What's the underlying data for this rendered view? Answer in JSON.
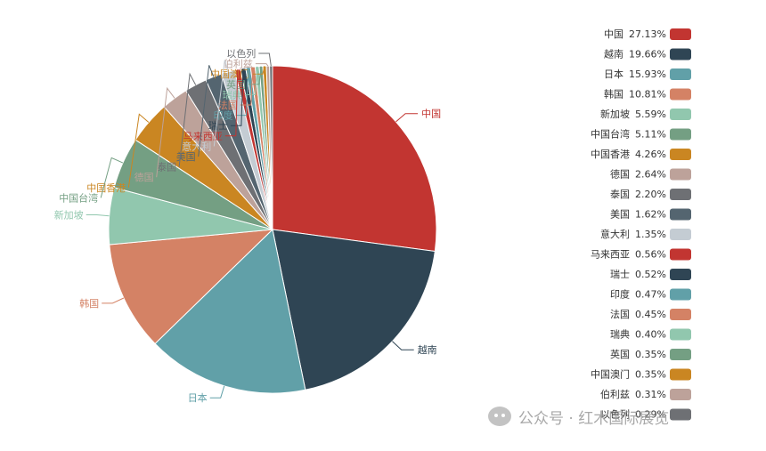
{
  "chart_data": {
    "type": "pie",
    "title": "",
    "legend_position": "right",
    "slices": [
      {
        "name": "中国",
        "value": 27.13,
        "value_label": "27.13%",
        "color": "#c23531"
      },
      {
        "name": "越南",
        "value": 19.66,
        "value_label": "19.66%",
        "color": "#2f4554"
      },
      {
        "name": "日本",
        "value": 15.93,
        "value_label": "15.93%",
        "color": "#61a0a8"
      },
      {
        "name": "韩国",
        "value": 10.81,
        "value_label": "10.81%",
        "color": "#d48265"
      },
      {
        "name": "新加坡",
        "value": 5.59,
        "value_label": "5.59%",
        "color": "#91c7ae"
      },
      {
        "name": "中国台湾",
        "value": 5.11,
        "value_label": "5.11%",
        "color": "#749f83"
      },
      {
        "name": "中国香港",
        "value": 4.26,
        "value_label": "4.26%",
        "color": "#ca8622"
      },
      {
        "name": "德国",
        "value": 2.64,
        "value_label": "2.64%",
        "color": "#bda29a"
      },
      {
        "name": "泰国",
        "value": 2.2,
        "value_label": "2.20%",
        "color": "#6e7074"
      },
      {
        "name": "美国",
        "value": 1.62,
        "value_label": "1.62%",
        "color": "#546570"
      },
      {
        "name": "意大利",
        "value": 1.35,
        "value_label": "1.35%",
        "color": "#c4ccd3"
      },
      {
        "name": "马来西亚",
        "value": 0.56,
        "value_label": "0.56%",
        "color": "#c23531"
      },
      {
        "name": "瑞士",
        "value": 0.52,
        "value_label": "0.52%",
        "color": "#2f4554"
      },
      {
        "name": "印度",
        "value": 0.47,
        "value_label": "0.47%",
        "color": "#61a0a8"
      },
      {
        "name": "法国",
        "value": 0.45,
        "value_label": "0.45%",
        "color": "#d48265"
      },
      {
        "name": "瑞典",
        "value": 0.4,
        "value_label": "0.40%",
        "color": "#91c7ae"
      },
      {
        "name": "英国",
        "value": 0.35,
        "value_label": "0.35%",
        "color": "#749f83"
      },
      {
        "name": "中国澳门",
        "value": 0.35,
        "value_label": "0.35%",
        "color": "#ca8622"
      },
      {
        "name": "伯利兹",
        "value": 0.31,
        "value_label": "0.31%",
        "color": "#bda29a"
      },
      {
        "name": "以色列",
        "value": 0.29,
        "value_label": "0.29%",
        "color": "#6e7074"
      }
    ]
  },
  "watermark": {
    "logo_icon": "wechat-logo-icon",
    "text": "公众号 · 红木国际展览"
  }
}
